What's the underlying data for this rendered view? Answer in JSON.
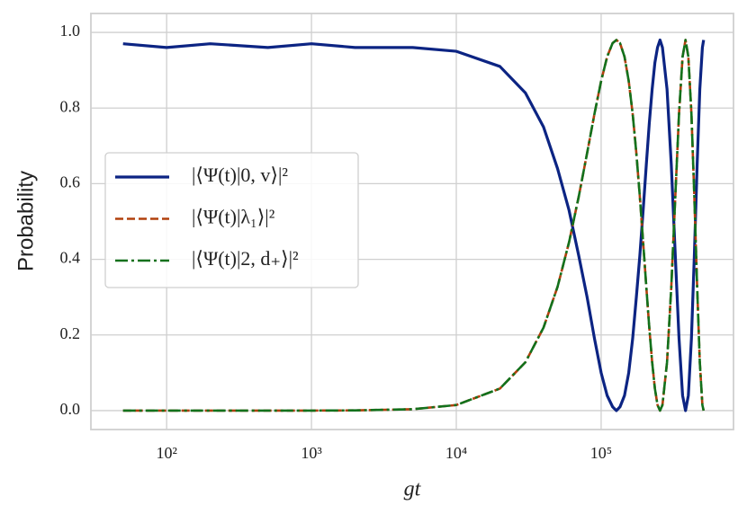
{
  "chart_data": {
    "type": "line",
    "xlabel": "gt",
    "ylabel": "Probability",
    "xscale": "log",
    "grid": true,
    "legend": "center left",
    "xlim": [
      30,
      820000
    ],
    "ylim": [
      -0.05,
      1.05
    ],
    "xticks": [
      {
        "value": 100,
        "label": "10²"
      },
      {
        "value": 1000,
        "label": "10³"
      },
      {
        "value": 10000,
        "label": "10⁴"
      },
      {
        "value": 100000,
        "label": "10⁵"
      }
    ],
    "yticks": [
      {
        "value": 0,
        "label": "0.0"
      },
      0.2,
      0.4,
      0.6,
      0.8,
      {
        "value": 1,
        "label": "1.0"
      }
    ],
    "x": [
      50,
      100,
      200,
      500,
      1000,
      2000,
      5000,
      10000,
      20000,
      30000,
      40000,
      50000,
      60000,
      70000,
      80000,
      90000,
      100000,
      110000,
      120000,
      127500,
      135000,
      145000,
      155000,
      165000,
      175000,
      185000,
      195000,
      205000,
      215000,
      225000,
      235000,
      245000,
      255000,
      265000,
      285000,
      305000,
      325000,
      345000,
      365000,
      382500,
      400000,
      420000,
      440000,
      460000,
      480000,
      500000,
      510000
    ],
    "series": [
      {
        "name": "|⟨Ψ(t)|0, v⟩|²",
        "color": "#0c2483",
        "dash": "solid",
        "values": [
          0.97,
          0.96,
          0.97,
          0.96,
          0.97,
          0.96,
          0.96,
          0.95,
          0.91,
          0.84,
          0.75,
          0.64,
          0.53,
          0.41,
          0.3,
          0.19,
          0.1,
          0.04,
          0.01,
          0,
          0.01,
          0.04,
          0.1,
          0.19,
          0.3,
          0.41,
          0.53,
          0.65,
          0.76,
          0.85,
          0.92,
          0.96,
          0.98,
          0.96,
          0.85,
          0.65,
          0.41,
          0.19,
          0.04,
          0,
          0.04,
          0.19,
          0.41,
          0.65,
          0.85,
          0.96,
          0.98
        ]
      },
      {
        "name": "|⟨Ψ(t)|λ₁⟩|²",
        "color": "#b1400d",
        "dash": "dashed",
        "values": [
          0,
          0,
          0,
          0,
          0.0001,
          0.0006,
          0.0037,
          0.0148,
          0.0583,
          0.1279,
          0.2194,
          0.3272,
          0.4448,
          0.5655,
          0.6808,
          0.7854,
          0.8716,
          0.9356,
          0.9716,
          0.98,
          0.9716,
          0.9356,
          0.8716,
          0.7854,
          0.6808,
          0.5655,
          0.4448,
          0.3272,
          0.2194,
          0.1279,
          0.0583,
          0.0148,
          0,
          0.0148,
          0.1279,
          0.3272,
          0.5655,
          0.7854,
          0.9356,
          0.98,
          0.9356,
          0.7854,
          0.5655,
          0.3272,
          0.1279,
          0.0148,
          0
        ]
      },
      {
        "name": "|⟨Ψ(t)|2, d₊⟩|²",
        "color": "#12711c",
        "dash": "dashdot",
        "values": [
          0,
          0,
          0,
          0,
          0.0001,
          0.0006,
          0.0037,
          0.0148,
          0.0583,
          0.1279,
          0.2194,
          0.3272,
          0.4448,
          0.5655,
          0.6808,
          0.7854,
          0.8716,
          0.9356,
          0.9716,
          0.98,
          0.9716,
          0.9356,
          0.8716,
          0.7854,
          0.6808,
          0.5655,
          0.4448,
          0.3272,
          0.2194,
          0.1279,
          0.0583,
          0.0148,
          0,
          0.0148,
          0.1279,
          0.3272,
          0.5655,
          0.7854,
          0.9356,
          0.98,
          0.9356,
          0.7854,
          0.5655,
          0.3272,
          0.1279,
          0.0148,
          0
        ]
      }
    ]
  }
}
